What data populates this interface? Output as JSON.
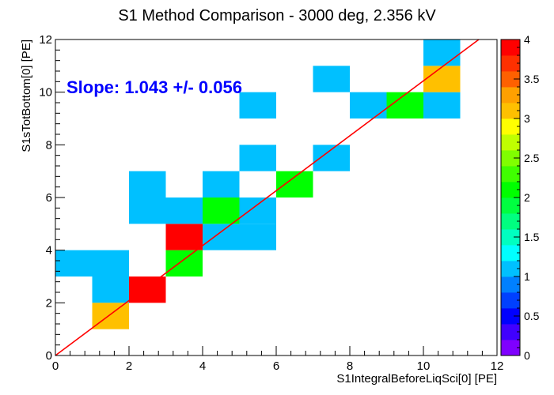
{
  "chart_data": {
    "type": "heatmap",
    "title": "S1 Method Comparison - 3000 deg, 2.356 kV",
    "xlabel": "S1IntegralBeforeLiqSci[0] [PE]",
    "ylabel": "S1sTotBottom[0] [PE]",
    "annotation": "Slope: 1.043 +/- 0.056",
    "xlim": [
      0,
      12
    ],
    "ylim": [
      0,
      12
    ],
    "x_ticks": [
      "0",
      "2",
      "4",
      "6",
      "8",
      "10",
      "12"
    ],
    "y_ticks": [
      "0",
      "2",
      "4",
      "6",
      "8",
      "10",
      "12"
    ],
    "bin_width": 1.0,
    "cells": [
      {
        "x": 0,
        "y": 3,
        "value": 1
      },
      {
        "x": 1,
        "y": 3,
        "value": 1
      },
      {
        "x": 1,
        "y": 2,
        "value": 1
      },
      {
        "x": 1,
        "y": 1,
        "value": 3
      },
      {
        "x": 2,
        "y": 2,
        "value": 4
      },
      {
        "x": 2,
        "y": 5,
        "value": 1
      },
      {
        "x": 2,
        "y": 6,
        "value": 1
      },
      {
        "x": 3,
        "y": 3,
        "value": 2
      },
      {
        "x": 3,
        "y": 4,
        "value": 4
      },
      {
        "x": 3,
        "y": 5,
        "value": 1
      },
      {
        "x": 4,
        "y": 4,
        "value": 1
      },
      {
        "x": 4,
        "y": 5,
        "value": 2
      },
      {
        "x": 4,
        "y": 6,
        "value": 1
      },
      {
        "x": 5,
        "y": 4,
        "value": 1
      },
      {
        "x": 5,
        "y": 5,
        "value": 1
      },
      {
        "x": 5,
        "y": 7,
        "value": 1
      },
      {
        "x": 5,
        "y": 9,
        "value": 1
      },
      {
        "x": 6,
        "y": 6,
        "value": 2
      },
      {
        "x": 7,
        "y": 7,
        "value": 1
      },
      {
        "x": 7,
        "y": 10,
        "value": 1
      },
      {
        "x": 8,
        "y": 9,
        "value": 1
      },
      {
        "x": 9,
        "y": 9,
        "value": 2
      },
      {
        "x": 10,
        "y": 9,
        "value": 1
      },
      {
        "x": 10,
        "y": 10,
        "value": 3
      },
      {
        "x": 10,
        "y": 11,
        "value": 1
      }
    ],
    "fit_line": {
      "slope": 1.043,
      "intercept": 0,
      "color": "#ff0000"
    },
    "colorbar": {
      "zlim": [
        0,
        4
      ],
      "ticks": [
        "0",
        "0.5",
        "1",
        "1.5",
        "2",
        "2.5",
        "3",
        "3.5",
        "4"
      ],
      "colors": [
        "#7f00ff",
        "#4000ff",
        "#0000ff",
        "#0040ff",
        "#0080ff",
        "#00c0ff",
        "#00ffff",
        "#00ffc0",
        "#00ff80",
        "#00ff40",
        "#00ff00",
        "#40ff00",
        "#80ff00",
        "#c0ff00",
        "#ffff00",
        "#ffc000",
        "#ffa000",
        "#ff6000",
        "#ff3000",
        "#ff0000"
      ]
    },
    "colors": {
      "annotation": "#0000ff",
      "axes": "#000000"
    }
  }
}
